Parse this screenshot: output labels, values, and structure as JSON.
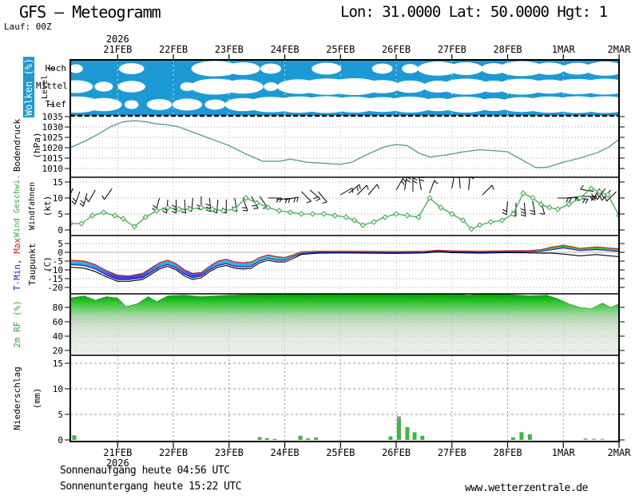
{
  "header": {
    "title": "GFS – Meteogramm",
    "coords": "Lon: 31.0000 Lat: 50.0000 Hgt: 1",
    "run": "Lauf: 00Z"
  },
  "time_axis": {
    "year": "2026",
    "days": [
      "21FEB",
      "22FEB",
      "23FEB",
      "24FEB",
      "25FEB",
      "26FEB",
      "27FEB",
      "28FEB",
      "1MAR",
      "2MAR"
    ]
  },
  "panels": {
    "clouds": {
      "label": "Wolken (%)",
      "axis": "Level",
      "levels": [
        "Hoch",
        "Mittel",
        "Tief"
      ]
    },
    "pressure": {
      "label": "Bodendruck",
      "unit": "(hPa)"
    },
    "wind": {
      "label": "Wind Geschwi.",
      "label2": "Windfahnen",
      "unit": "(kt)"
    },
    "temp": {
      "label_min": "T-Min,",
      "label_max": "Max",
      "label2": "Taupunkt",
      "unit": "(C)"
    },
    "rh": {
      "label": "2m RF (%)"
    },
    "precip": {
      "label": "Niederschlag",
      "unit": "(mm)"
    }
  },
  "footer": {
    "sunrise": "Sonnenaufgang heute 04:56 UTC",
    "sunset": "Sonnenuntergang heute 15:22 UTC",
    "site": "www.wetterzentrale.de"
  },
  "colors": {
    "cloud_blue": "#1b9ad6",
    "pressure": "#5aa0a0",
    "wind": "#3fae4c",
    "tmax": "#d02020",
    "tmin": "#2222cc",
    "dew": "#000000",
    "precip_green": "#3cb83c",
    "precip_brown": "#c49a72",
    "precip_gray": "#8f8f8f"
  },
  "chart_data": [
    {
      "panel": "clouds",
      "type": "heatmap",
      "title": "Wolken (%)",
      "levels": [
        "Hoch",
        "Mittel",
        "Tief"
      ],
      "x_days": [
        -0.75,
        -0.25,
        0.25,
        0.75,
        1.25,
        1.75,
        2.25,
        2.75,
        3.25,
        3.75,
        4.25,
        4.75,
        5.25,
        5.75,
        6.25,
        6.75,
        7.25,
        7.75,
        8.25,
        8.75
      ],
      "hoch": [
        10,
        0,
        35,
        0,
        0,
        85,
        55,
        25,
        0,
        45,
        5,
        25,
        15,
        70,
        55,
        35,
        80,
        50,
        45,
        70
      ],
      "mittel": [
        55,
        20,
        40,
        0,
        10,
        90,
        70,
        10,
        75,
        95,
        100,
        60,
        50,
        45,
        90,
        45,
        90,
        70,
        85,
        90
      ],
      "tief": [
        95,
        60,
        10,
        35,
        45,
        25,
        60,
        85,
        95,
        100,
        90,
        80,
        90,
        60,
        90,
        55,
        80,
        95,
        100,
        100
      ]
    },
    {
      "panel": "pressure",
      "type": "line",
      "ylabel": "Bodendruck (hPa)",
      "ylim": [
        1006,
        1036
      ],
      "yticks": [
        1035,
        1030,
        1025,
        1020,
        1015,
        1010
      ],
      "x": [
        -0.85,
        -0.6,
        -0.35,
        -0.1,
        0.1,
        0.3,
        0.5,
        0.7,
        0.9,
        1.1,
        1.4,
        1.7,
        2,
        2.3,
        2.6,
        2.9,
        3.1,
        3.4,
        3.7,
        4,
        4.2,
        4.5,
        4.8,
        5,
        5.2,
        5.4,
        5.6,
        5.9,
        6.2,
        6.5,
        6.8,
        7,
        7.2,
        7.5,
        7.7,
        8,
        8.3,
        8.6,
        8.8,
        9
      ],
      "y": [
        1020,
        1023,
        1026.5,
        1030.5,
        1032.5,
        1033,
        1032.5,
        1031.5,
        1031,
        1030,
        1027,
        1024,
        1021,
        1017,
        1013.5,
        1013.5,
        1014.5,
        1013,
        1012.5,
        1012,
        1013,
        1017,
        1020.5,
        1021.5,
        1021,
        1017.5,
        1015.5,
        1016.5,
        1018,
        1019,
        1018.5,
        1018,
        1015,
        1010.5,
        1010.5,
        1013,
        1015,
        1017.5,
        1020,
        1024
      ]
    },
    {
      "panel": "wind",
      "type": "line",
      "ylabel": "Wind Geschwi. (kt)",
      "ylim": [
        0,
        16
      ],
      "yticks": [
        15,
        10,
        5,
        0
      ],
      "x": [
        -0.85,
        -0.65,
        -0.45,
        -0.25,
        -0.05,
        0.1,
        0.3,
        0.5,
        0.7,
        0.9,
        1.1,
        1.3,
        1.5,
        1.7,
        1.9,
        2.1,
        2.3,
        2.5,
        2.7,
        2.9,
        3.1,
        3.3,
        3.5,
        3.7,
        3.9,
        4.1,
        4.25,
        4.4,
        4.6,
        4.8,
        5,
        5.2,
        5.4,
        5.6,
        5.8,
        6,
        6.2,
        6.35,
        6.5,
        6.7,
        6.9,
        7.1,
        7.28,
        7.45,
        7.6,
        7.75,
        7.9,
        8.1,
        8.3,
        8.5,
        8.65,
        8.8,
        9
      ],
      "y": [
        2,
        2,
        4.5,
        5.5,
        4.5,
        3.5,
        1,
        4,
        6,
        7,
        6.5,
        6.5,
        7,
        6.5,
        6,
        6.5,
        10,
        8.5,
        7,
        6,
        5.5,
        5,
        5,
        5,
        4.5,
        4,
        3,
        1.5,
        2.5,
        4,
        5,
        4.5,
        4,
        10,
        7,
        5,
        3,
        0.3,
        1.5,
        2.5,
        3,
        5,
        11.5,
        10,
        8,
        7,
        6.5,
        8,
        10,
        13,
        12,
        11,
        4.5
      ],
      "barbs": [
        [
          -0.8,
          205,
          13,
          3
        ],
        [
          -0.68,
          200,
          12,
          2
        ],
        [
          -0.55,
          195,
          11.5,
          2
        ],
        [
          -0.4,
          210,
          12.5,
          1
        ],
        [
          -0.1,
          215,
          13,
          1
        ],
        [
          0.75,
          195,
          10,
          2
        ],
        [
          0.9,
          185,
          9.5,
          2
        ],
        [
          1.05,
          180,
          9.5,
          3
        ],
        [
          1.2,
          175,
          9.5,
          2
        ],
        [
          1.35,
          185,
          10,
          2
        ],
        [
          1.5,
          180,
          10.5,
          2
        ],
        [
          1.65,
          175,
          10,
          3
        ],
        [
          1.8,
          185,
          9.5,
          2
        ],
        [
          1.95,
          180,
          9.5,
          2
        ],
        [
          2.1,
          170,
          10,
          2
        ],
        [
          2.25,
          160,
          10,
          2
        ],
        [
          2.4,
          150,
          10.5,
          2
        ],
        [
          2.55,
          145,
          10.5,
          1
        ],
        [
          2.7,
          90,
          10,
          2
        ],
        [
          2.85,
          85,
          9.5,
          2
        ],
        [
          3,
          80,
          9.5,
          2
        ],
        [
          3.3,
          135,
          12,
          1
        ],
        [
          3.45,
          130,
          12.5,
          2
        ],
        [
          3.6,
          140,
          12,
          1
        ],
        [
          4,
          60,
          11,
          1
        ],
        [
          4.15,
          50,
          11.5,
          2
        ],
        [
          4.3,
          45,
          11,
          1
        ],
        [
          4.5,
          40,
          11,
          1
        ],
        [
          5,
          30,
          12.5,
          2
        ],
        [
          5.15,
          10,
          12.5,
          2
        ],
        [
          5.3,
          0,
          12,
          2
        ],
        [
          5.45,
          350,
          12.5,
          2
        ],
        [
          5.6,
          20,
          11.5,
          1
        ],
        [
          6,
          10,
          13,
          1
        ],
        [
          6.15,
          355,
          13,
          1
        ],
        [
          6.3,
          5,
          12.5,
          1
        ],
        [
          6.55,
          45,
          11,
          1
        ],
        [
          7,
          185,
          9,
          2
        ],
        [
          7.15,
          180,
          8.5,
          2
        ],
        [
          7.3,
          175,
          8.5,
          3
        ],
        [
          7.45,
          170,
          9,
          2
        ],
        [
          7.6,
          165,
          9,
          1
        ],
        [
          7.9,
          90,
          10,
          2
        ],
        [
          8.05,
          85,
          10,
          2
        ],
        [
          8.2,
          95,
          10,
          2
        ],
        [
          8.35,
          90,
          10.5,
          2
        ],
        [
          8.55,
          280,
          12,
          1
        ],
        [
          8.65,
          210,
          13,
          2
        ],
        [
          8.75,
          215,
          13,
          2
        ],
        [
          8.85,
          220,
          12.5,
          2
        ],
        [
          8.95,
          225,
          12,
          1
        ]
      ]
    },
    {
      "panel": "temp",
      "type": "area",
      "ylabel": "T-Min, Max / Taupunkt (C)",
      "ylim": [
        -23,
        9
      ],
      "yticks": [
        5,
        0,
        -5,
        -10,
        -15,
        -20
      ],
      "x": [
        -0.85,
        -0.6,
        -0.4,
        -0.2,
        0,
        0.2,
        0.45,
        0.6,
        0.75,
        0.9,
        1.05,
        1.2,
        1.35,
        1.5,
        1.65,
        1.8,
        1.95,
        2.1,
        2.25,
        2.4,
        2.55,
        2.7,
        2.85,
        3,
        3.15,
        3.3,
        3.6,
        4,
        4.5,
        5,
        5.5,
        5.75,
        6,
        6.5,
        7,
        7.4,
        7.6,
        7.8,
        8,
        8.15,
        8.3,
        8.45,
        8.6,
        8.75,
        9
      ],
      "tmax": [
        -4.5,
        -5,
        -7,
        -10.5,
        -13,
        -13.5,
        -12,
        -9,
        -6,
        -4.5,
        -6.5,
        -10,
        -12,
        -11.5,
        -8,
        -5,
        -4,
        -5.5,
        -6,
        -5.5,
        -3,
        -1.5,
        -2.5,
        -3,
        -1.5,
        0.3,
        0.6,
        0.6,
        0.5,
        0.4,
        0.6,
        1.2,
        0.8,
        0.6,
        0.9,
        1,
        1.5,
        3,
        4,
        3.2,
        2.2,
        2.6,
        3,
        2.6,
        2
      ],
      "tmin": [
        -7,
        -7.5,
        -9.5,
        -13,
        -15.5,
        -15.5,
        -14.5,
        -11.5,
        -8.5,
        -7,
        -9,
        -12.5,
        -14.5,
        -13.5,
        -10,
        -7.5,
        -6.5,
        -8,
        -8.5,
        -8,
        -5,
        -3.5,
        -4.5,
        -4.5,
        -2.5,
        -0.7,
        0,
        0,
        -0.1,
        -0.2,
        0,
        0.6,
        0.3,
        0,
        0.3,
        0.4,
        0.6,
        1.5,
        2.5,
        1.8,
        1,
        1.3,
        1.6,
        1.2,
        0.5
      ],
      "taupunkt": [
        -8.5,
        -9,
        -11,
        -14,
        -16.5,
        -16.5,
        -15.5,
        -12.5,
        -9.5,
        -8,
        -10,
        -13.5,
        -15.5,
        -14.5,
        -11,
        -8.5,
        -7.5,
        -9,
        -9.5,
        -9,
        -6,
        -4.5,
        -5.5,
        -5.5,
        -3.5,
        -1.2,
        -0.5,
        -0.4,
        -0.5,
        -0.6,
        -0.4,
        0.2,
        -0.2,
        -0.5,
        -0.2,
        -0.3,
        -0.5,
        -0.5,
        -1,
        -1.5,
        -2,
        -1.6,
        -1.3,
        -1.8,
        -2.5
      ]
    },
    {
      "panel": "rh",
      "type": "area",
      "ylabel": "2m RF (%)",
      "ylim": [
        13,
        100
      ],
      "yticks": [
        80,
        60,
        40,
        20
      ],
      "x": [
        -0.85,
        -0.6,
        -0.4,
        -0.2,
        0,
        0.15,
        0.35,
        0.55,
        0.7,
        0.9,
        1.2,
        1.5,
        2,
        2.5,
        3,
        3.5,
        4,
        4.5,
        5,
        5.5,
        6,
        6.3,
        6.6,
        7,
        7.4,
        7.7,
        7.9,
        8.1,
        8.3,
        8.5,
        8.7,
        8.85,
        9
      ],
      "y": [
        93,
        96,
        90,
        95,
        93,
        81,
        85,
        95,
        88,
        96,
        97,
        95,
        97,
        98,
        100,
        98,
        100,
        100,
        100,
        98,
        100,
        97,
        100,
        98,
        96,
        97,
        92,
        85,
        80,
        78,
        86,
        80,
        85
      ]
    },
    {
      "panel": "precip",
      "type": "bar",
      "ylabel": "Niederschlag (mm)",
      "ylim": [
        0,
        16
      ],
      "yticks": [
        15,
        10,
        5,
        0
      ],
      "bars": [
        {
          "d": -0.78,
          "v": 0.9,
          "c": "green"
        },
        {
          "d": 2.55,
          "v": 0.55,
          "c": "green"
        },
        {
          "d": 2.68,
          "v": 0.35,
          "c": "green"
        },
        {
          "d": 2.82,
          "v": 0.2,
          "c": "green"
        },
        {
          "d": 3.28,
          "v": 0.8,
          "c": "green"
        },
        {
          "d": 3.42,
          "v": 0.3,
          "c": "green"
        },
        {
          "d": 3.56,
          "v": 0.45,
          "c": "green"
        },
        {
          "d": 4.9,
          "v": 0.7,
          "c": "green"
        },
        {
          "d": 5.05,
          "v": 3.9,
          "c": "green",
          "cap": 0.7
        },
        {
          "d": 5.2,
          "v": 2.5,
          "c": "green"
        },
        {
          "d": 5.33,
          "v": 1.5,
          "c": "green"
        },
        {
          "d": 5.47,
          "v": 0.8,
          "c": "green"
        },
        {
          "d": 7.1,
          "v": 0.5,
          "c": "green"
        },
        {
          "d": 7.25,
          "v": 1.5,
          "c": "green"
        },
        {
          "d": 7.4,
          "v": 1.1,
          "c": "green"
        },
        {
          "d": 8.4,
          "v": 0.3,
          "c": "brown"
        },
        {
          "d": 8.55,
          "v": 0.25,
          "c": "brown"
        },
        {
          "d": 8.7,
          "v": 0.2,
          "c": "brown"
        }
      ]
    }
  ]
}
